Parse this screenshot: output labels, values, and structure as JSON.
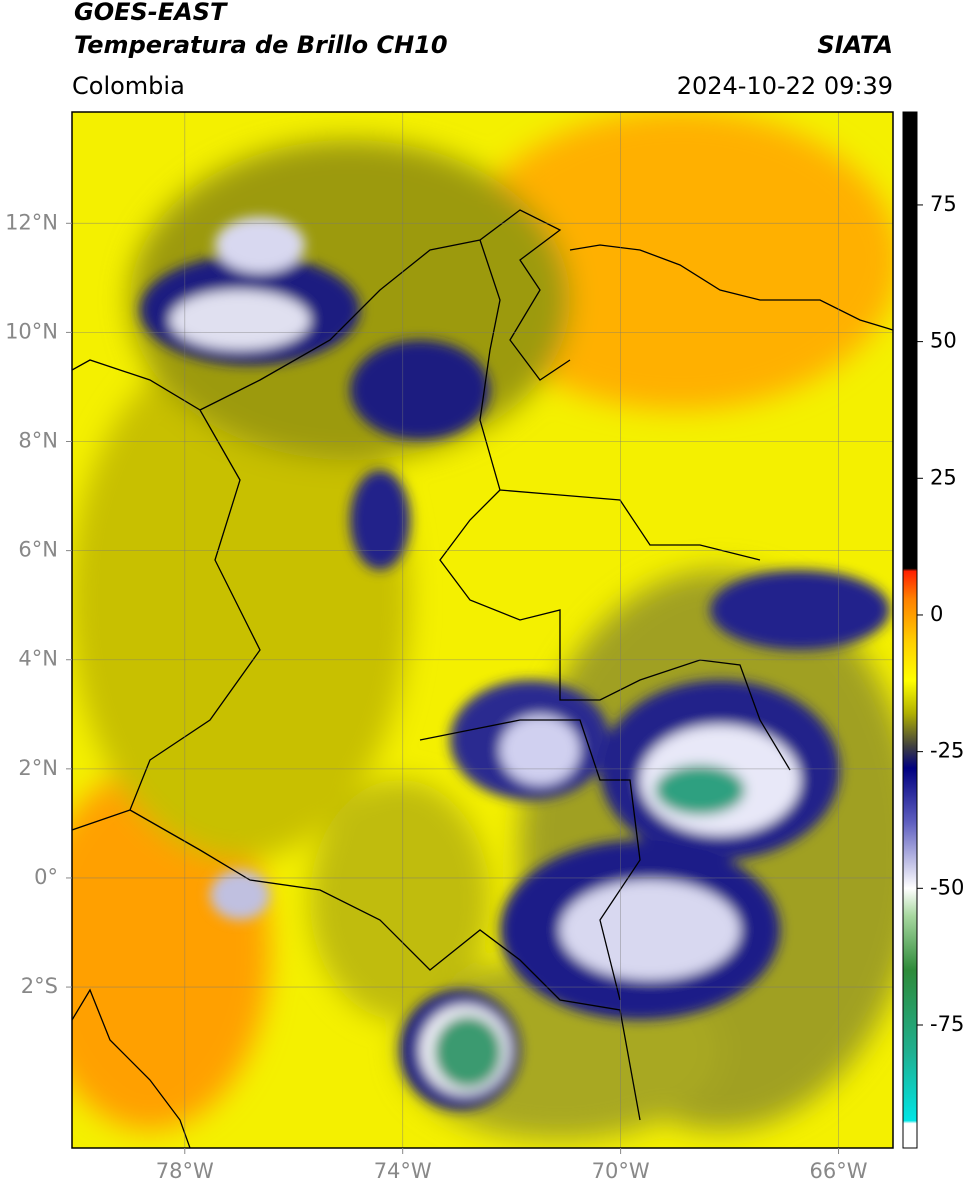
{
  "header": {
    "satellite": "GOES-EAST",
    "product": "Temperatura de Brillo CH10",
    "source": "SIATA",
    "region": "Colombia",
    "datetime": "2024-10-22 09:39"
  },
  "map": {
    "xlim": [
      -80.07,
      -65.0
    ],
    "ylim": [
      -4.95,
      14.04
    ],
    "grid": true,
    "xticks": [
      {
        "value": -78,
        "label": "78°W"
      },
      {
        "value": -74,
        "label": "74°W"
      },
      {
        "value": -70,
        "label": "70°W"
      },
      {
        "value": -66,
        "label": "66°W"
      }
    ],
    "yticks": [
      {
        "value": 12,
        "label": "12°N"
      },
      {
        "value": 10,
        "label": "10°N"
      },
      {
        "value": 8,
        "label": "8°N"
      },
      {
        "value": 6,
        "label": "6°N"
      },
      {
        "value": 4,
        "label": "4°N"
      },
      {
        "value": 2,
        "label": "2°N"
      },
      {
        "value": 0,
        "label": "0°"
      },
      {
        "value": -2,
        "label": "2°S"
      }
    ]
  },
  "colorbar": {
    "lim": [
      -97.5,
      92
    ],
    "ticks": [
      75,
      50,
      25,
      0,
      -25,
      -50,
      -75
    ],
    "stops": [
      {
        "value": -97.5,
        "color": "#ffffff"
      },
      {
        "value": -93,
        "color": "#ffffff"
      },
      {
        "value": -92.5,
        "color": "#00e5e5"
      },
      {
        "value": -80,
        "color": "#20b090"
      },
      {
        "value": -65,
        "color": "#2e8b3a"
      },
      {
        "value": -55,
        "color": "#a8d8a0"
      },
      {
        "value": -50,
        "color": "#ffffff"
      },
      {
        "value": -38,
        "color": "#6060c0"
      },
      {
        "value": -28,
        "color": "#000080"
      },
      {
        "value": -24,
        "color": "#404040"
      },
      {
        "value": -18,
        "color": "#b0b000"
      },
      {
        "value": -12,
        "color": "#ffff00"
      },
      {
        "value": -5,
        "color": "#ffd000"
      },
      {
        "value": 3,
        "color": "#ff8000"
      },
      {
        "value": 8,
        "color": "#ff2000"
      },
      {
        "value": 8.5,
        "color": "#000000"
      },
      {
        "value": 92,
        "color": "#000000"
      }
    ]
  }
}
